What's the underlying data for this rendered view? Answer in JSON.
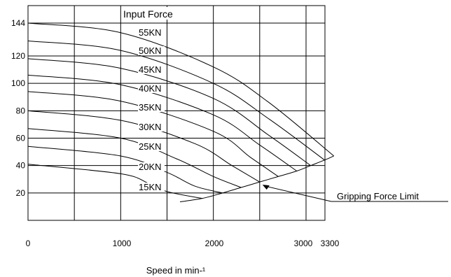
{
  "chart_data": {
    "type": "line",
    "title": "Input Force",
    "xlabel": "Speed in min-¹",
    "ylabel": "",
    "xlim": [
      0,
      3300
    ],
    "ylim": [
      0,
      150
    ],
    "x_ticks": [
      "0",
      "1000",
      "2000",
      "3000",
      "3300"
    ],
    "y_ticks": [
      "20",
      "40",
      "60",
      "80",
      "100",
      "120",
      "144"
    ],
    "y_tick_values": [
      20,
      40,
      60,
      80,
      100,
      120,
      144
    ],
    "grid": true,
    "series": [
      {
        "name": "55KN",
        "x": [
          0,
          1000,
          2000,
          2600,
          3300
        ],
        "y": [
          144,
          137,
          112,
          86,
          47
        ]
      },
      {
        "name": "50KN",
        "x": [
          0,
          1000,
          2000,
          2600,
          3200
        ],
        "y": [
          131,
          124,
          100,
          74,
          44
        ]
      },
      {
        "name": "45KN",
        "x": [
          0,
          1000,
          2000,
          2600,
          3050
        ],
        "y": [
          118,
          111,
          89,
          62,
          40
        ]
      },
      {
        "name": "40KN",
        "x": [
          0,
          1000,
          2000,
          2500,
          2900
        ],
        "y": [
          106,
          99,
          77,
          55,
          36
        ]
      },
      {
        "name": "35KN",
        "x": [
          0,
          1000,
          2000,
          2400,
          2700
        ],
        "y": [
          94,
          87,
          65,
          46,
          32
        ]
      },
      {
        "name": "30KN",
        "x": [
          0,
          1000,
          1800,
          2200,
          2500
        ],
        "y": [
          80,
          73,
          56,
          40,
          28
        ]
      },
      {
        "name": "25KN",
        "x": [
          0,
          1000,
          1600,
          2000,
          2300
        ],
        "y": [
          67,
          60,
          45,
          32,
          24
        ]
      },
      {
        "name": "20KN",
        "x": [
          0,
          1000,
          1500,
          1800,
          2100
        ],
        "y": [
          54,
          47,
          35,
          25,
          20
        ]
      },
      {
        "name": "15KN",
        "x": [
          0,
          1000,
          1300,
          1500,
          1880
        ],
        "y": [
          41,
          34,
          27,
          21,
          16
        ]
      }
    ],
    "limit_line": {
      "name": "Gripping Force Limit",
      "x": [
        1640,
        1880,
        2100,
        2300,
        2500,
        2700,
        2900,
        3050,
        3200,
        3300
      ],
      "y": [
        13.5,
        16,
        20,
        24,
        28,
        32,
        36,
        40,
        44,
        47
      ]
    },
    "annotation": {
      "text": "Gripping Force Limit",
      "points_to": [
        2530,
        26
      ]
    }
  }
}
